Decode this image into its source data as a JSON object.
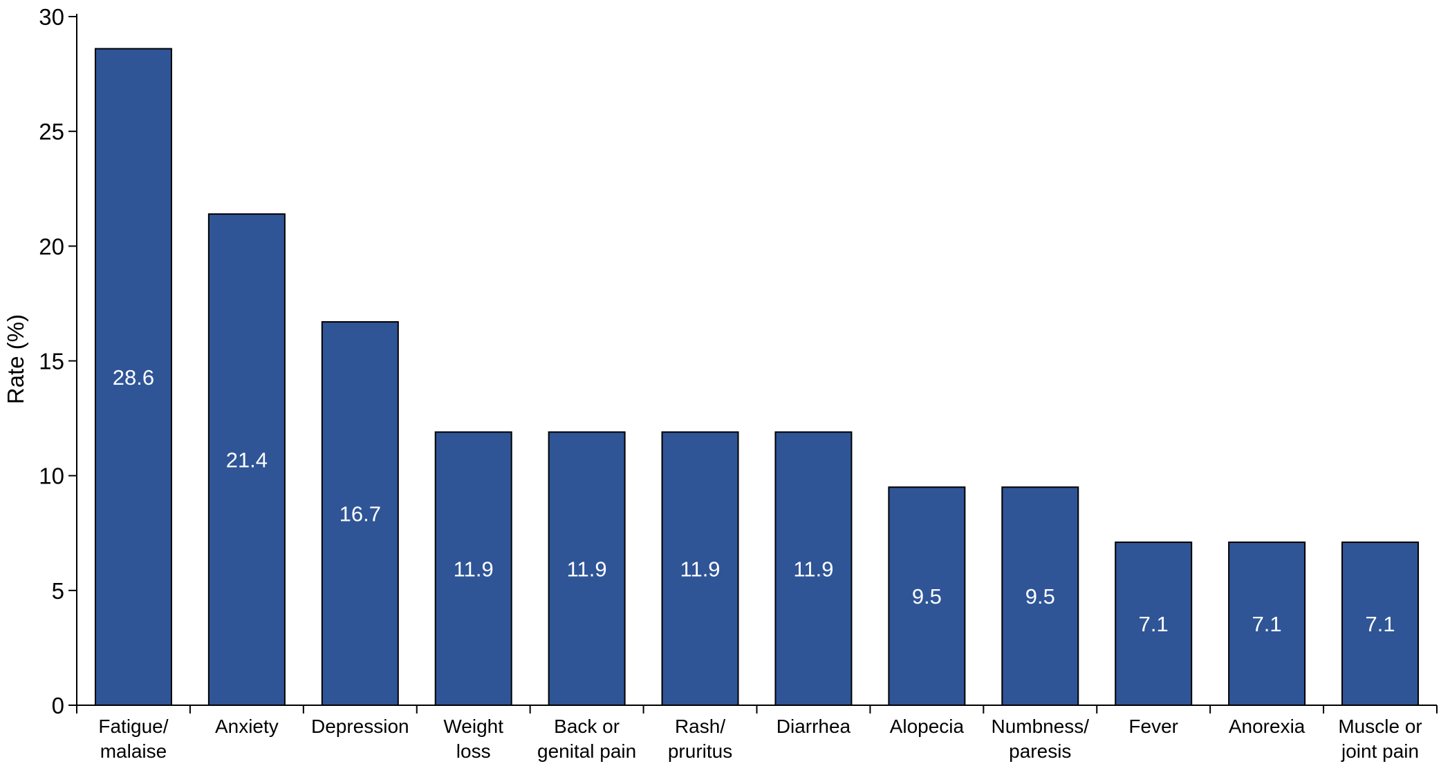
{
  "chart_data": {
    "type": "bar",
    "title": "",
    "xlabel": "",
    "ylabel": "Rate (%)",
    "ylim": [
      0,
      30
    ],
    "yticks": [
      0,
      5,
      10,
      15,
      20,
      25,
      30
    ],
    "grid": false,
    "legend": "none",
    "bar_color": "#2f5597",
    "bar_edge_color": "#000000",
    "label_color": "#ffffff",
    "categories": [
      [
        "Fatigue/",
        "malaise"
      ],
      [
        "Anxiety"
      ],
      [
        "Depression"
      ],
      [
        "Weight",
        "loss"
      ],
      [
        "Back or",
        "genital pain"
      ],
      [
        "Rash/",
        "pruritus"
      ],
      [
        "Diarrhea"
      ],
      [
        "Alopecia"
      ],
      [
        "Numbness/",
        "paresis"
      ],
      [
        "Fever"
      ],
      [
        "Anorexia"
      ],
      [
        "Muscle or",
        "joint pain"
      ]
    ],
    "values": [
      28.6,
      21.4,
      16.7,
      11.9,
      11.9,
      11.9,
      11.9,
      9.5,
      9.5,
      7.1,
      7.1,
      7.1
    ],
    "data_labels": [
      "28.6",
      "21.4",
      "16.7",
      "11.9",
      "11.9",
      "11.9",
      "11.9",
      "9.5",
      "9.5",
      "7.1",
      "7.1",
      "7.1"
    ]
  }
}
